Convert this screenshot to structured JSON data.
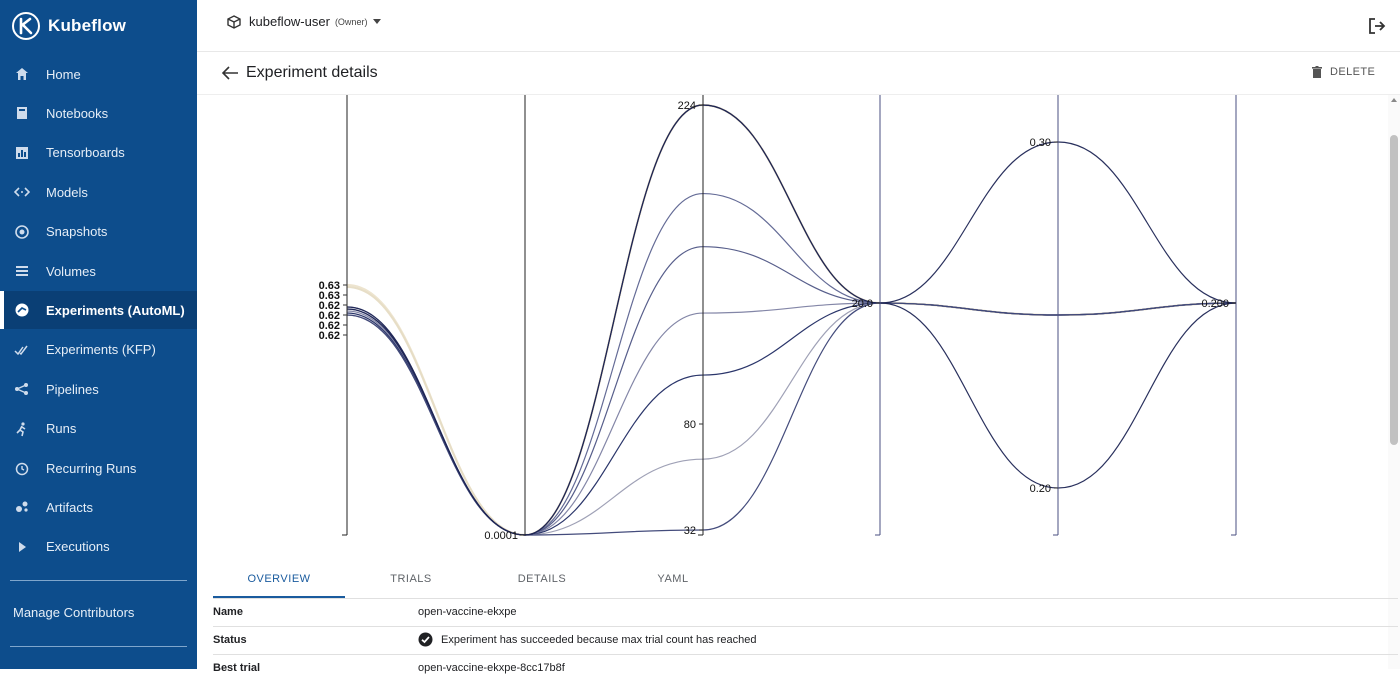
{
  "app": {
    "name": "Kubeflow"
  },
  "sidebar": {
    "items": [
      {
        "label": "Home",
        "icon": "home-icon"
      },
      {
        "label": "Notebooks",
        "icon": "notebook-icon"
      },
      {
        "label": "Tensorboards",
        "icon": "chart-icon"
      },
      {
        "label": "Models",
        "icon": "code-arrows-icon"
      },
      {
        "label": "Snapshots",
        "icon": "snapshot-icon"
      },
      {
        "label": "Volumes",
        "icon": "list-icon"
      },
      {
        "label": "Experiments (AutoML)",
        "icon": "automl-icon",
        "active": true
      },
      {
        "label": "Experiments (KFP)",
        "icon": "check-double-icon"
      },
      {
        "label": "Pipelines",
        "icon": "pipeline-icon"
      },
      {
        "label": "Runs",
        "icon": "runner-icon"
      },
      {
        "label": "Recurring Runs",
        "icon": "alarm-icon"
      },
      {
        "label": "Artifacts",
        "icon": "artifact-icon"
      },
      {
        "label": "Executions",
        "icon": "play-icon"
      }
    ],
    "manage": "Manage Contributors"
  },
  "header": {
    "namespace": "kubeflow-user",
    "role": "(Owner)"
  },
  "page": {
    "title": "Experiment details",
    "delete_label": "DELETE"
  },
  "chart_data": {
    "type": "parallel-coordinates",
    "axis_ticks": [
      [
        "0.63",
        "0.63",
        "0.62",
        "0.62",
        "0.62",
        "0.62"
      ],
      [
        "0.0001"
      ],
      [
        "224",
        "80",
        "32"
      ],
      [
        "20.0"
      ],
      [
        "0.30",
        "0.20"
      ],
      [
        "0.200"
      ]
    ],
    "color_range": [
      "#efe6d2",
      "#1c2a5e"
    ],
    "trials": [
      {
        "values": [
          0.633,
          0.0001,
          224,
          20,
          0.25,
          0.2
        ],
        "color": "#ece3cc"
      },
      {
        "values": [
          0.632,
          0.0001,
          224,
          20,
          0.25,
          0.2
        ],
        "color": "#e6dcc4"
      },
      {
        "values": [
          0.622,
          0.0001,
          184,
          20,
          0.25,
          0.2
        ],
        "color": "#5c6390"
      },
      {
        "values": [
          0.621,
          0.0001,
          160,
          20,
          0.25,
          0.2
        ],
        "color": "#4e5585"
      },
      {
        "values": [
          0.62,
          0.0001,
          130,
          20,
          0.25,
          0.2
        ],
        "color": "#7c80a2"
      },
      {
        "values": [
          0.619,
          0.0001,
          102,
          20,
          0.25,
          0.2
        ],
        "color": "#1f2a62"
      },
      {
        "values": [
          0.618,
          0.0001,
          64,
          20,
          0.25,
          0.2
        ],
        "color": "#9a9cb2"
      },
      {
        "values": [
          0.618,
          0.0001,
          32,
          20,
          0.25,
          0.2
        ],
        "color": "#3a4275"
      },
      {
        "values": [
          0.622,
          0.0001,
          224,
          20,
          0.3,
          0.2
        ],
        "color": "#1e2554"
      },
      {
        "values": [
          0.621,
          0.0001,
          224,
          20,
          0.2,
          0.2
        ],
        "color": "#1e2554"
      }
    ]
  },
  "tabs": [
    {
      "label": "OVERVIEW",
      "active": true
    },
    {
      "label": "TRIALS"
    },
    {
      "label": "DETAILS"
    },
    {
      "label": "YAML"
    }
  ],
  "overview": {
    "name_key": "Name",
    "name_value": "open-vaccine-ekxpe",
    "status_key": "Status",
    "status_value": "Experiment has succeeded because max trial count has reached",
    "best_key": "Best trial",
    "best_value": "open-vaccine-ekxpe-8cc17b8f"
  },
  "colors": {
    "sidebar": "#0d4d8c",
    "accent": "#1a5b9e"
  }
}
